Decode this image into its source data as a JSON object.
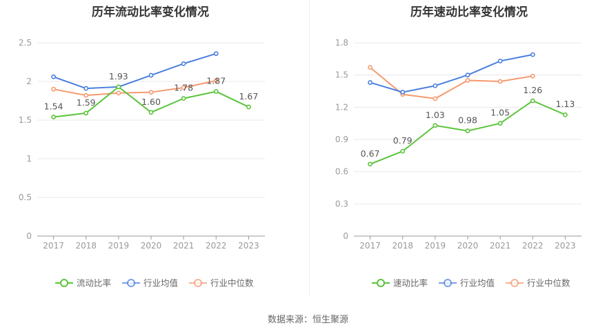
{
  "source_text": "数据来源：恒生聚源",
  "chart_data": [
    {
      "type": "line",
      "title": "历年流动比率变化情况",
      "categories": [
        "2017",
        "2018",
        "2019",
        "2020",
        "2021",
        "2022",
        "2023"
      ],
      "ylim": [
        0,
        2.5
      ],
      "yticks": [
        "0",
        "0.5",
        "1",
        "1.5",
        "2",
        "2.5"
      ],
      "ytick_values": [
        0,
        0.5,
        1,
        1.5,
        2,
        2.5
      ],
      "grid": true,
      "legend_position": "bottom",
      "series": [
        {
          "name": "流动比率",
          "color": "#5ac43a",
          "values": [
            1.54,
            1.59,
            1.93,
            1.6,
            1.78,
            1.87,
            1.67
          ],
          "labels": [
            "1.54",
            "1.59",
            "1.93",
            "1.60",
            "1.78",
            "1.87",
            "1.67"
          ]
        },
        {
          "name": "行业均值",
          "color": "#4a7fe0",
          "values": [
            2.06,
            1.91,
            1.93,
            2.08,
            2.23,
            2.36,
            null
          ]
        },
        {
          "name": "行业中位数",
          "color": "#f59a6f",
          "values": [
            1.9,
            1.82,
            1.85,
            1.86,
            1.92,
            2.01,
            null
          ]
        }
      ]
    },
    {
      "type": "line",
      "title": "历年速动比率变化情况",
      "categories": [
        "2017",
        "2018",
        "2019",
        "2020",
        "2021",
        "2022",
        "2023"
      ],
      "ylim": [
        0,
        1.8
      ],
      "yticks": [
        "0",
        "0.3",
        "0.6",
        "0.9",
        "1.2",
        "1.5",
        "1.8"
      ],
      "ytick_values": [
        0,
        0.3,
        0.6,
        0.9,
        1.2,
        1.5,
        1.8
      ],
      "grid": true,
      "legend_position": "bottom",
      "series": [
        {
          "name": "速动比率",
          "color": "#5ac43a",
          "values": [
            0.67,
            0.79,
            1.03,
            0.98,
            1.05,
            1.26,
            1.13
          ],
          "labels": [
            "0.67",
            "0.79",
            "1.03",
            "0.98",
            "1.05",
            "1.26",
            "1.13"
          ]
        },
        {
          "name": "行业均值",
          "color": "#4a7fe0",
          "values": [
            1.43,
            1.34,
            1.4,
            1.5,
            1.63,
            1.69,
            null
          ]
        },
        {
          "name": "行业中位数",
          "color": "#f59a6f",
          "values": [
            1.57,
            1.32,
            1.28,
            1.45,
            1.44,
            1.49,
            null
          ]
        }
      ]
    }
  ]
}
